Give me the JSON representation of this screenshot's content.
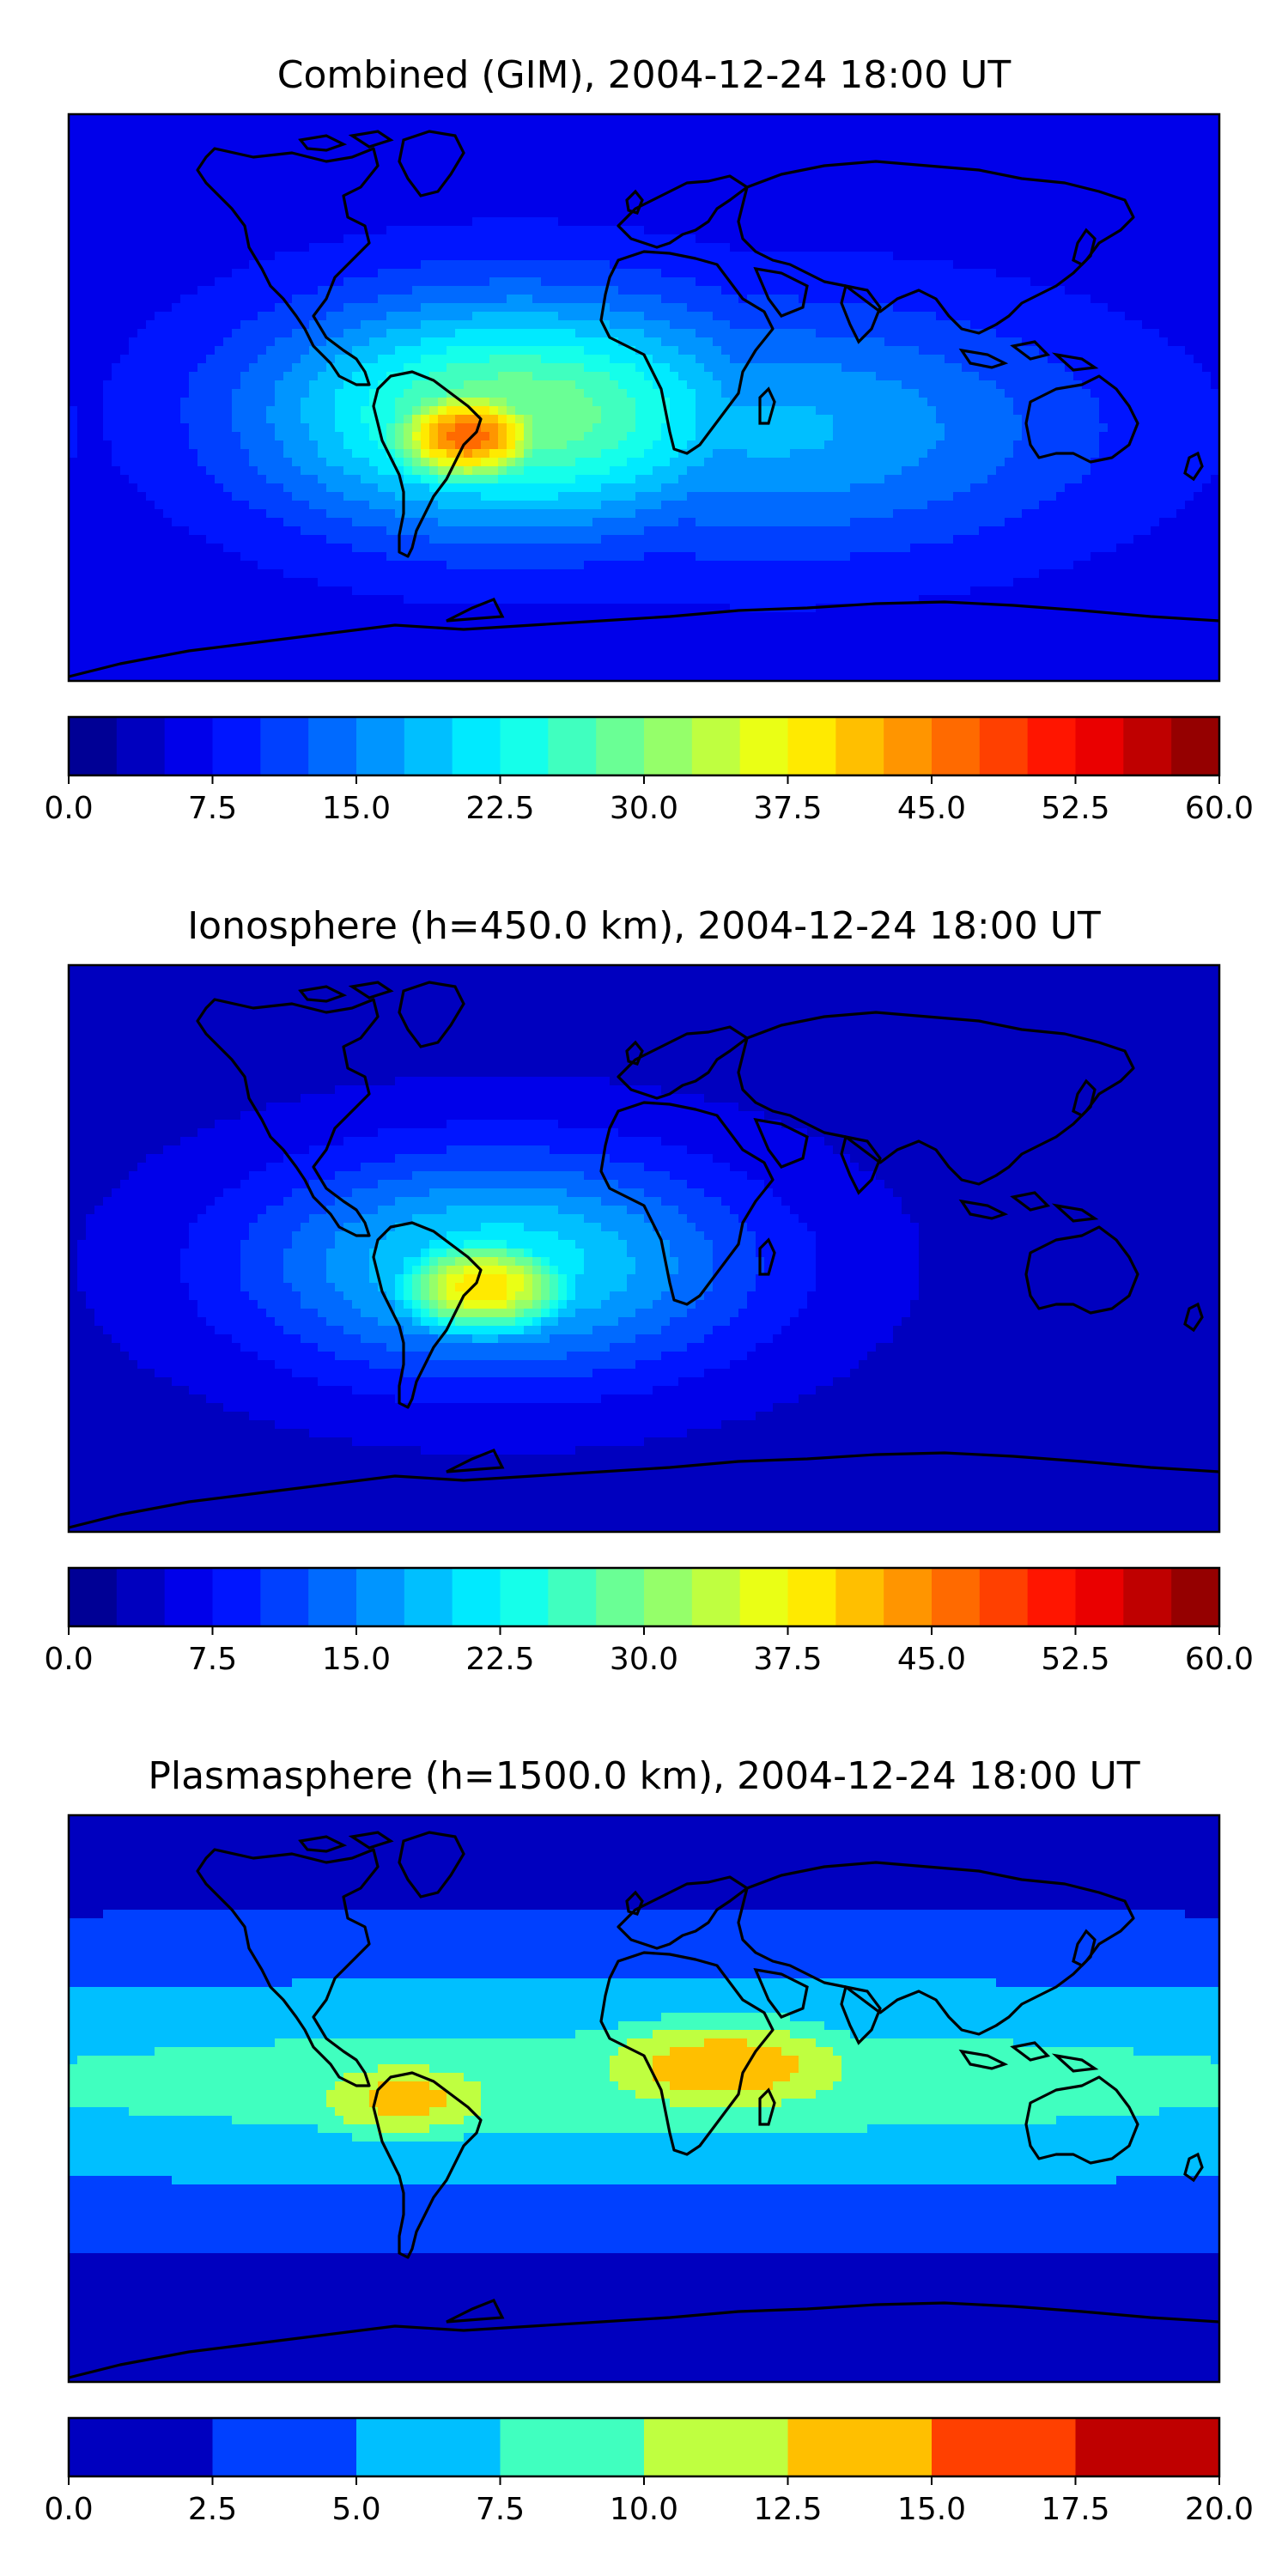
{
  "panels": [
    {
      "id": "combined",
      "title": "Combined (GIM), 2004-12-24 18:00 UT",
      "colorbar": {
        "min": 0,
        "max": 60,
        "levels": 24,
        "ticks": [
          "0.0",
          "7.5",
          "15.0",
          "22.5",
          "30.0",
          "37.5",
          "45.0",
          "52.5",
          "60.0"
        ]
      },
      "features": [
        {
          "name": "south-atlantic-peak",
          "lon": -55,
          "lat": -12,
          "value": 47,
          "spread_lon": 20,
          "spread_lat": 12
        },
        {
          "name": "tropical-atlantic-belt",
          "lon": -40,
          "lat": -5,
          "value": 30,
          "spread_lon": 55,
          "spread_lat": 26
        },
        {
          "name": "indian-ocean-extension",
          "lon": 40,
          "lat": -10,
          "value": 18,
          "spread_lon": 70,
          "spread_lat": 28
        }
      ],
      "background": 6
    },
    {
      "id": "ionosphere",
      "title": "Ionosphere  (h=450.0 km), 2004-12-24 18:00 UT",
      "colorbar": {
        "min": 0,
        "max": 60,
        "levels": 24,
        "ticks": [
          "0.0",
          "7.5",
          "15.0",
          "22.5",
          "30.0",
          "37.5",
          "45.0",
          "52.5",
          "60.0"
        ]
      },
      "features": [
        {
          "name": "south-america-peak",
          "lon": -50,
          "lat": -12,
          "value": 40,
          "spread_lon": 22,
          "spread_lat": 12
        },
        {
          "name": "tropical-atlantic-belt",
          "lon": -45,
          "lat": -5,
          "value": 22,
          "spread_lon": 55,
          "spread_lat": 25
        }
      ],
      "background": 4
    },
    {
      "id": "plasmasphere",
      "title": "Plasmasphere (h=1500.0 km), 2004-12-24 18:00 UT",
      "colorbar": {
        "min": 0,
        "max": 20,
        "levels": 8,
        "ticks": [
          "0.0",
          "2.5",
          "5.0",
          "7.5",
          "10.0",
          "12.5",
          "15.0",
          "17.5",
          "20.0"
        ]
      },
      "features": [
        {
          "name": "africa-max",
          "lon": 25,
          "lat": 10,
          "value": 14.5,
          "spread_lon": 40,
          "spread_lat": 14
        },
        {
          "name": "south-america-max",
          "lon": -75,
          "lat": 0,
          "value": 13.5,
          "spread_lon": 30,
          "spread_lat": 12
        },
        {
          "name": "equatorial-band",
          "lon": 0,
          "lat": 5,
          "value": 8.5,
          "spread_lon": 360,
          "spread_lat": 28
        }
      ],
      "background": 1.5
    }
  ],
  "colormap": "jet"
}
